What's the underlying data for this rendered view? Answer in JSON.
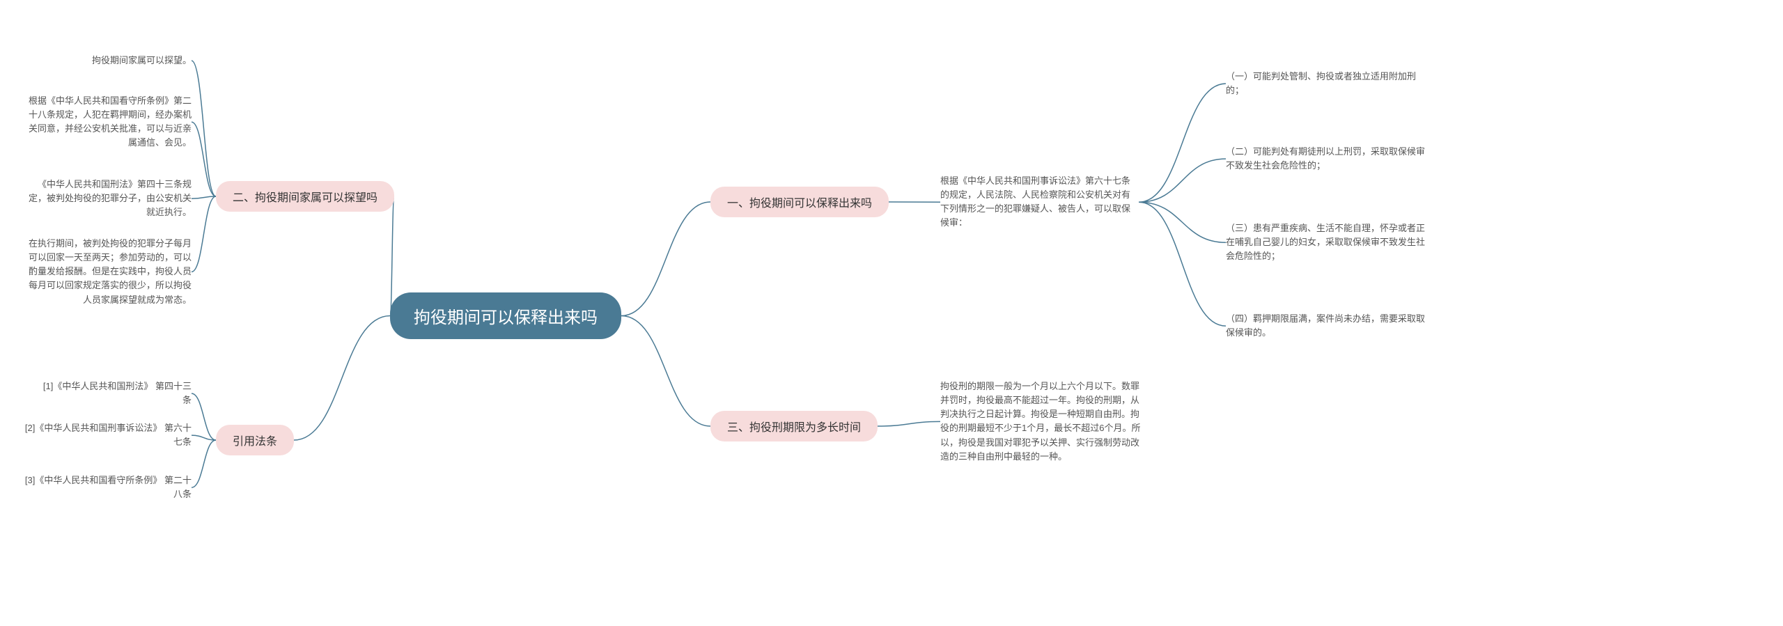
{
  "colors": {
    "root_bg": "#4a7a94",
    "root_text": "#ffffff",
    "branch_bg": "#f7dcdc",
    "branch_text": "#333333",
    "leaf_text": "#555555",
    "edge": "#4a7a94",
    "edge_light": "#7aa0b3",
    "background": "#ffffff"
  },
  "root": {
    "label": "拘役期间可以保释出来吗"
  },
  "branches": {
    "b1": {
      "label": "一、拘役期间可以保释出来吗",
      "side": "right",
      "children": [
        {
          "id": "b1c0",
          "text": "根据《中华人民共和国刑事诉讼法》第六十七条的规定，人民法院、人民检察院和公安机关对有下列情形之一的犯罪嫌疑人、被告人，可以取保候审："
        },
        {
          "id": "b1c1",
          "text": "（一）可能判处管制、拘役或者独立适用附加刑的；"
        },
        {
          "id": "b1c2",
          "text": "（二）可能判处有期徒刑以上刑罚，采取取保候审不致发生社会危险性的；"
        },
        {
          "id": "b1c3",
          "text": "（三）患有严重疾病、生活不能自理，怀孕或者正在哺乳自己婴儿的妇女，采取取保候审不致发生社会危险性的；"
        },
        {
          "id": "b1c4",
          "text": "（四）羁押期限届满，案件尚未办结，需要采取取保候审的。"
        }
      ]
    },
    "b2": {
      "label": "二、拘役期间家属可以探望吗",
      "side": "left",
      "children": [
        {
          "id": "b2c1",
          "text": "拘役期间家属可以探望。"
        },
        {
          "id": "b2c2",
          "text": "根据《中华人民共和国看守所条例》第二十八条规定，人犯在羁押期间，经办案机关同意，并经公安机关批准，可以与近亲属通信、会见。"
        },
        {
          "id": "b2c3",
          "text": "《中华人民共和国刑法》第四十三条规定，被判处拘役的犯罪分子，由公安机关就近执行。"
        },
        {
          "id": "b2c4",
          "text": "在执行期间，被判处拘役的犯罪分子每月可以回家一天至两天；参加劳动的，可以酌量发给报酬。但是在实践中，拘役人员每月可以回家规定落实的很少，所以拘役人员家属探望就成为常态。"
        }
      ]
    },
    "b3": {
      "label": "三、拘役刑期限为多长时间",
      "side": "right",
      "children": [
        {
          "id": "b3c1",
          "text": "拘役刑的期限一般为一个月以上六个月以下。数罪并罚时，拘役最高不能超过一年。拘役的刑期，从判决执行之日起计算。拘役是一种短期自由刑。拘役的刑期最短不少于1个月，最长不超过6个月。所以，拘役是我国对罪犯予以关押、实行强制劳动改造的三种自由刑中最轻的一种。"
        }
      ]
    },
    "b4": {
      "label": "引用法条",
      "side": "left",
      "children": [
        {
          "id": "b4c1",
          "text": "[1]《中华人民共和国刑法》 第四十三条"
        },
        {
          "id": "b4c2",
          "text": "[2]《中华人民共和国刑事诉讼法》 第六十七条"
        },
        {
          "id": "b4c3",
          "text": "[3]《中华人民共和国看守所条例》 第二十八条"
        }
      ]
    }
  }
}
